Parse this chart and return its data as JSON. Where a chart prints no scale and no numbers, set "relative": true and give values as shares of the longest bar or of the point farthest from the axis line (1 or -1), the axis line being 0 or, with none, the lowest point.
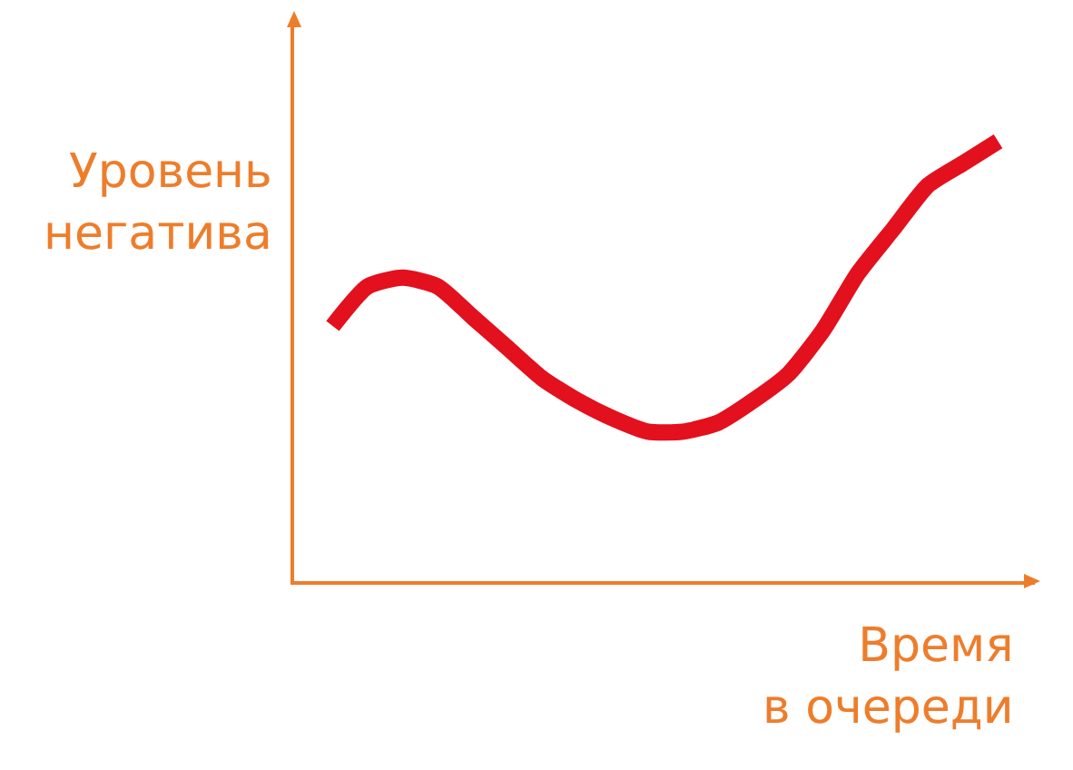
{
  "chart_data": {
    "type": "line",
    "relative": true,
    "xlabel": "Время в очереди",
    "ylabel": "Уровень негатива",
    "categories": [
      null,
      null,
      null,
      null,
      null,
      null,
      null,
      null,
      null,
      null,
      null,
      null,
      null,
      null,
      null,
      null,
      null,
      null,
      null,
      null
    ],
    "series": [
      {
        "color": "#e3101e",
        "values": [
          0.58,
          0.67,
          0.69,
          0.67,
          0.6,
          0.53,
          0.46,
          0.41,
          0.37,
          0.34,
          0.34,
          0.36,
          0.41,
          0.47,
          0.57,
          0.7,
          0.8,
          0.9,
          0.95,
          1.0
        ]
      }
    ],
    "marker": "none",
    "line_style": "solid"
  }
}
